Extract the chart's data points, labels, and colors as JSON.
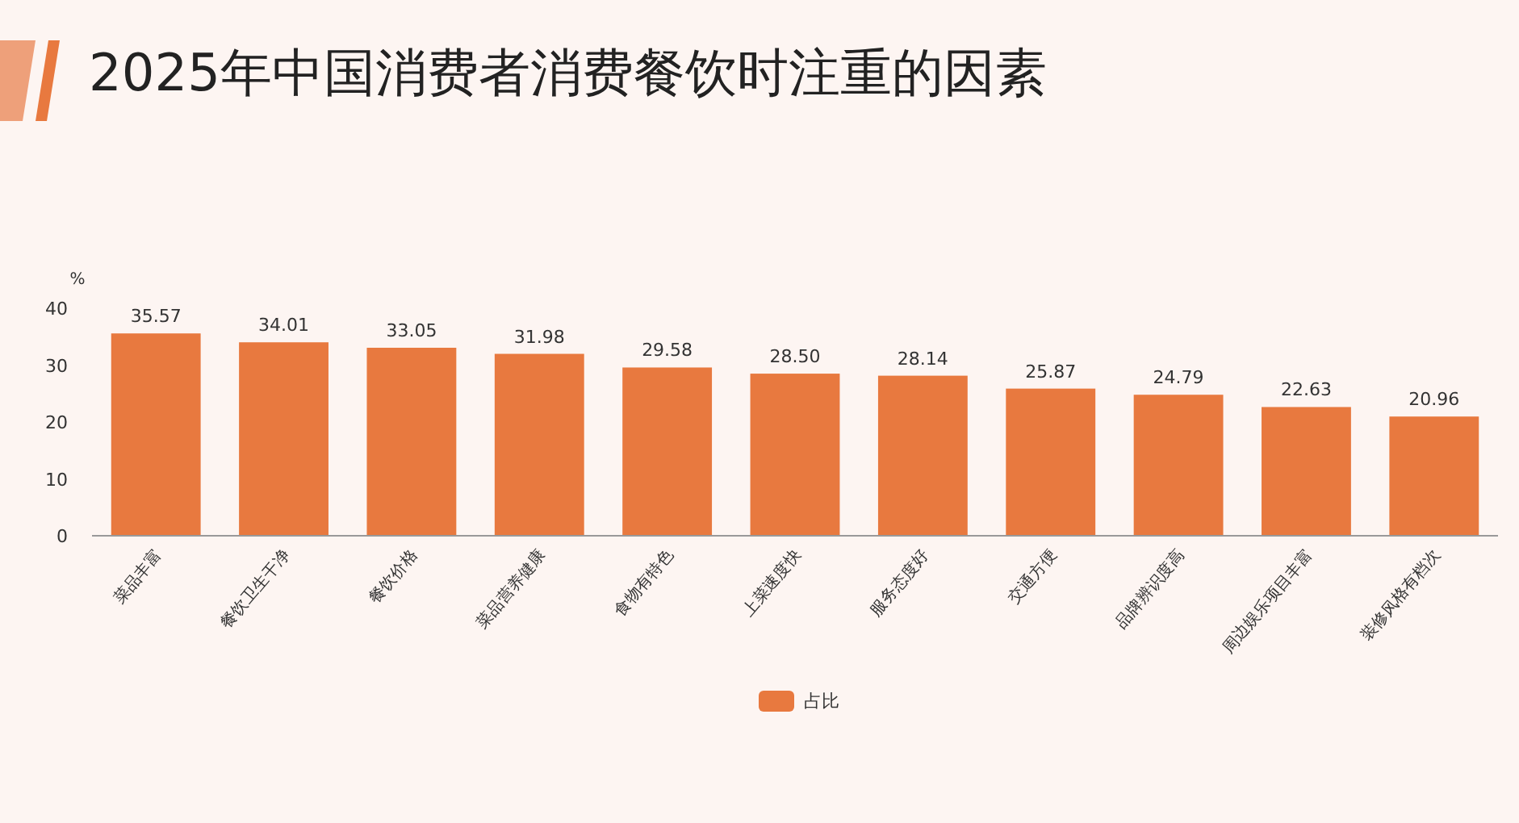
{
  "chart_data": {
    "type": "bar",
    "title": "2025年中国消费者消费餐饮时注重的因素",
    "ylabel": "%",
    "categories": [
      "菜品丰富",
      "餐饮卫生干净",
      "餐饮价格",
      "菜品营养健康",
      "食物有特色",
      "上菜速度快",
      "服务态度好",
      "交通方便",
      "品牌辨识度高",
      "周边娱乐项目丰富",
      "装修风格有档次"
    ],
    "series": [
      {
        "name": "占比",
        "color": "#e8793f",
        "values": [
          35.57,
          34.01,
          33.05,
          31.98,
          29.58,
          28.5,
          28.14,
          25.87,
          24.79,
          22.63,
          20.96
        ],
        "value_labels": [
          "35.57",
          "34.01",
          "33.05",
          "31.98",
          "29.58",
          "28.50",
          "28.14",
          "25.87",
          "24.79",
          "22.63",
          "20.96"
        ]
      }
    ],
    "ylim": [
      0,
      40
    ],
    "yticks": [
      0,
      10,
      20,
      30,
      40
    ],
    "legend": "bottom"
  }
}
